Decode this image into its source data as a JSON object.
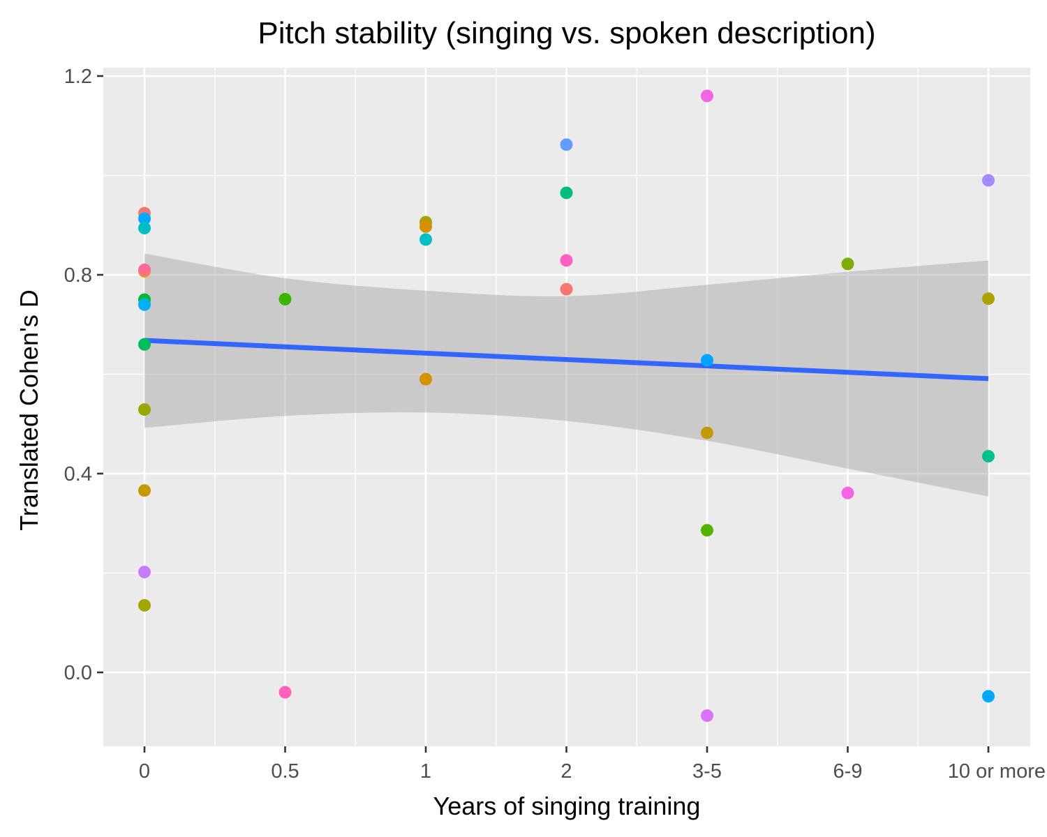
{
  "chart_data": {
    "type": "scatter",
    "title": "Pitch stability (singing vs. spoken description)",
    "xlabel": "Years of singing training",
    "ylabel": "Translated Cohen's D",
    "x_categories": [
      "0",
      "0.5",
      "1",
      "2",
      "3-5",
      "6-9",
      "10 or more"
    ],
    "y_ticks": [
      0.0,
      0.4,
      0.8,
      1.2
    ],
    "y_tick_labels": [
      "0.0",
      "0.4",
      "0.8",
      "1.2"
    ],
    "ylim": [
      -0.15,
      1.2
    ],
    "grid": true,
    "legend": "none",
    "points": [
      {
        "x": "0",
        "y": 0.924,
        "color": "#F8766D"
      },
      {
        "x": "0",
        "y": 0.913,
        "color": "#00A9FF"
      },
      {
        "x": "0",
        "y": 0.894,
        "color": "#00BFC4"
      },
      {
        "x": "0",
        "y": 0.807,
        "color": "#E7A900"
      },
      {
        "x": "0",
        "y": 0.81,
        "color": "#FF6C91"
      },
      {
        "x": "0",
        "y": 0.75,
        "color": "#00BA38"
      },
      {
        "x": "0",
        "y": 0.74,
        "color": "#00B0F6"
      },
      {
        "x": "0",
        "y": 0.66,
        "color": "#00BD5C"
      },
      {
        "x": "0",
        "y": 0.529,
        "color": "#99A800"
      },
      {
        "x": "0",
        "y": 0.366,
        "color": "#C49A00"
      },
      {
        "x": "0",
        "y": 0.202,
        "color": "#C77CFF"
      },
      {
        "x": "0",
        "y": 0.135,
        "color": "#A3A500"
      },
      {
        "x": "0.5",
        "y": 0.751,
        "color": "#39B600"
      },
      {
        "x": "0.5",
        "y": -0.04,
        "color": "#FF62BC"
      },
      {
        "x": "1",
        "y": 0.906,
        "color": "#A3A500"
      },
      {
        "x": "1",
        "y": 0.897,
        "color": "#D89000"
      },
      {
        "x": "1",
        "y": 0.871,
        "color": "#00BFC4"
      },
      {
        "x": "1",
        "y": 0.59,
        "color": "#D39200"
      },
      {
        "x": "2",
        "y": 1.062,
        "color": "#619CFF"
      },
      {
        "x": "2",
        "y": 0.965,
        "color": "#00BF7D"
      },
      {
        "x": "2",
        "y": 0.829,
        "color": "#FF61C3"
      },
      {
        "x": "2",
        "y": 0.771,
        "color": "#F8766D"
      },
      {
        "x": "3-5",
        "y": 1.16,
        "color": "#F564E3"
      },
      {
        "x": "3-5",
        "y": 0.628,
        "color": "#00A5FF"
      },
      {
        "x": "3-5",
        "y": 0.482,
        "color": "#C49A00"
      },
      {
        "x": "3-5",
        "y": 0.286,
        "color": "#53B400"
      },
      {
        "x": "3-5",
        "y": -0.087,
        "color": "#DB72FB"
      },
      {
        "x": "6-9",
        "y": 0.822,
        "color": "#7CAE00"
      },
      {
        "x": "6-9",
        "y": 0.361,
        "color": "#F564E3"
      },
      {
        "x": "10 or more",
        "y": 0.99,
        "color": "#A58AFF"
      },
      {
        "x": "10 or more",
        "y": 0.752,
        "color": "#ABA300"
      },
      {
        "x": "10 or more",
        "y": 0.435,
        "color": "#00C08B"
      },
      {
        "x": "10 or more",
        "y": -0.048,
        "color": "#00A9FF"
      }
    ],
    "trend_line": {
      "color": "#3366FF",
      "x": [
        "0",
        "10 or more"
      ],
      "y": [
        0.668,
        0.591
      ]
    },
    "confidence_band": {
      "color": "#999999",
      "x": [
        "0",
        "0.5",
        "1",
        "2",
        "3-5",
        "6-9",
        "10 or more"
      ],
      "lower": [
        0.492,
        0.516,
        0.523,
        0.506,
        0.466,
        0.41,
        0.354
      ],
      "upper": [
        0.843,
        0.793,
        0.768,
        0.757,
        0.78,
        0.806,
        0.829
      ]
    }
  },
  "colors": {
    "panel_background": "#EBEBEB",
    "grid": "#FFFFFF",
    "axis_ticks": "#333333"
  }
}
